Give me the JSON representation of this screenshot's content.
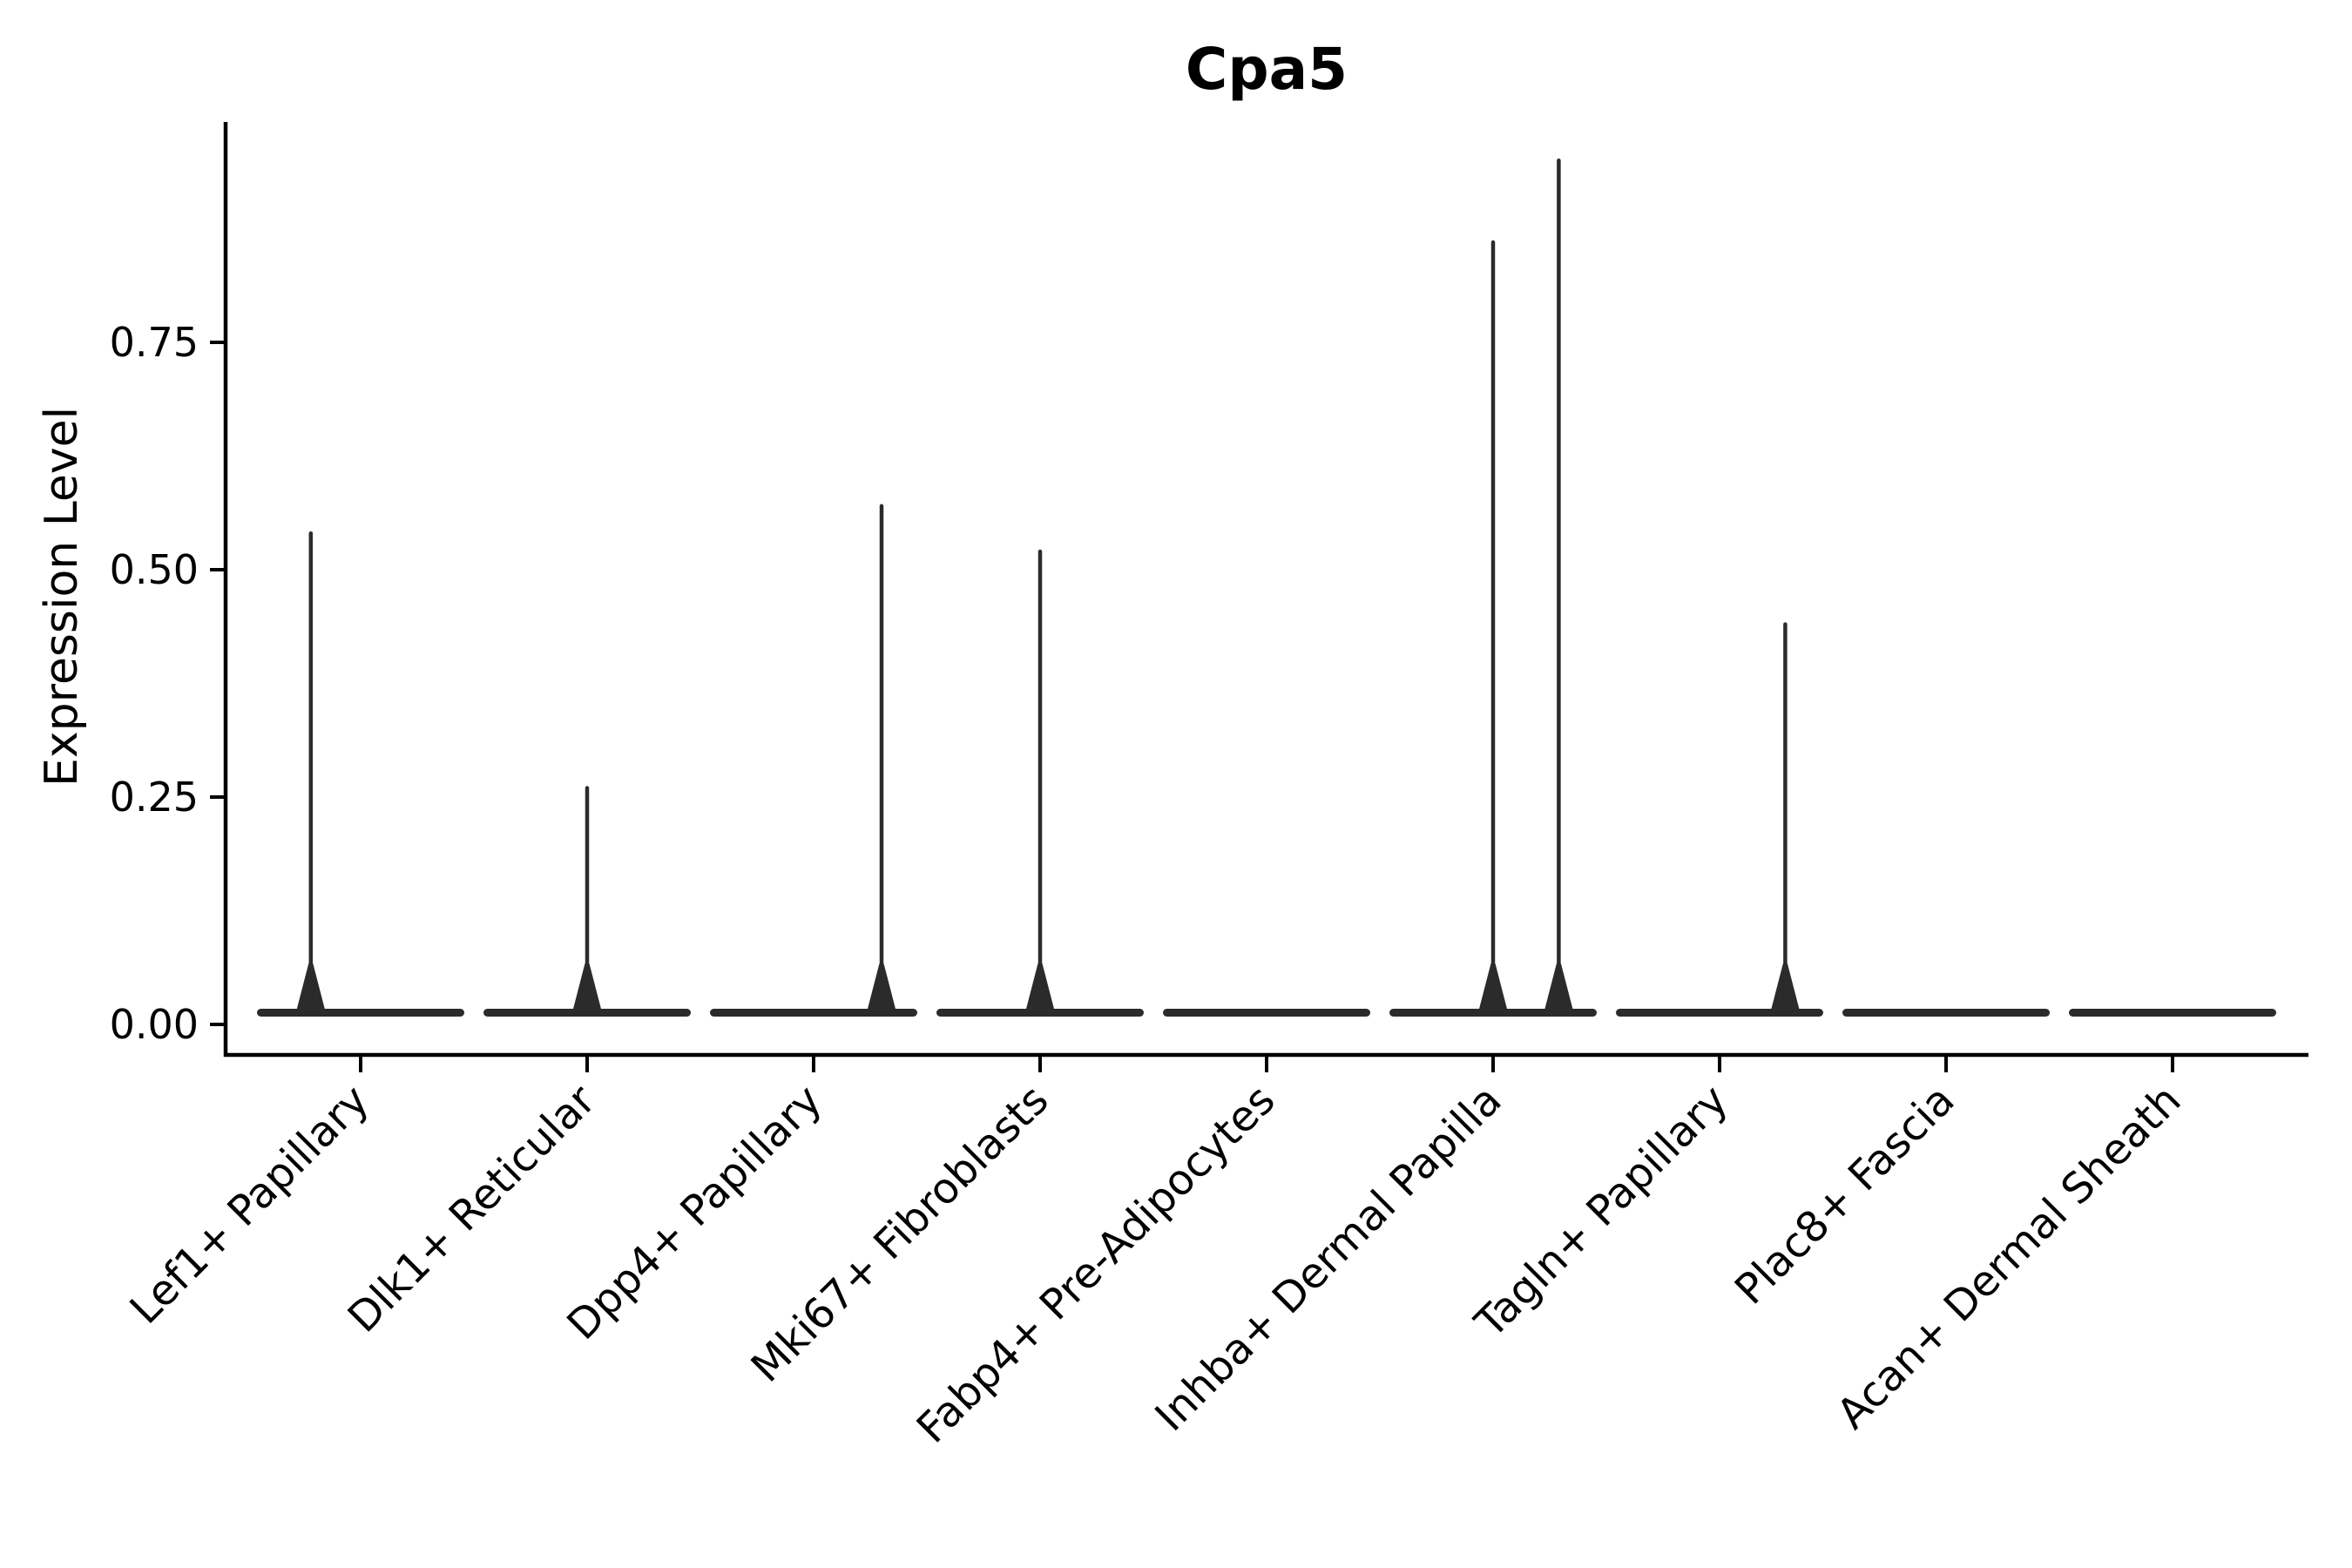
{
  "figure": {
    "background_color": "#ffffff",
    "axis_color": "#000000",
    "violin_color": "#2b2b2b"
  },
  "chart_data": {
    "type": "violin",
    "title": "Cpa5",
    "xlabel": "",
    "ylabel": "Expression Level",
    "grid": false,
    "legend": "none",
    "ylim": [
      -0.03,
      0.99
    ],
    "ytick_labels": [
      "0.00",
      "0.25",
      "0.50",
      "0.75"
    ],
    "ytick_values": [
      0.0,
      0.25,
      0.5,
      0.75
    ],
    "categories": [
      "Lef1+ Papillary",
      "Dlk1+ Reticular",
      "Dpp4+ Papillary",
      "Mki67+ Fibroblasts",
      "Fabp4+ Pre-Adipocytes",
      "Inhba+ Dermal Papilla",
      "Tagln+ Papillary",
      "Plac8+ Fascia",
      "Acan+ Dermal Sheath"
    ],
    "xtick_label_rotation_deg": 45,
    "violins": [
      {
        "category": "Lef1+ Papillary",
        "baseline_value": 0.0,
        "spikes": [
          {
            "value": 0.54,
            "offset_frac": -0.22
          }
        ]
      },
      {
        "category": "Dlk1+ Reticular",
        "baseline_value": 0.0,
        "spikes": [
          {
            "value": 0.26,
            "offset_frac": 0.0
          }
        ]
      },
      {
        "category": "Dpp4+ Papillary",
        "baseline_value": 0.0,
        "spikes": [
          {
            "value": 0.57,
            "offset_frac": 0.3
          }
        ]
      },
      {
        "category": "Mki67+ Fibroblasts",
        "baseline_value": 0.0,
        "spikes": [
          {
            "value": 0.52,
            "offset_frac": 0.0
          }
        ]
      },
      {
        "category": "Fabp4+ Pre-Adipocytes",
        "baseline_value": 0.0,
        "spikes": []
      },
      {
        "category": "Inhba+ Dermal Papilla",
        "baseline_value": 0.0,
        "spikes": [
          {
            "value": 0.86,
            "offset_frac": 0.0
          },
          {
            "value": 0.95,
            "offset_frac": 0.29
          }
        ]
      },
      {
        "category": "Tagln+ Papillary",
        "baseline_value": 0.0,
        "spikes": [
          {
            "value": 0.44,
            "offset_frac": 0.29
          }
        ]
      },
      {
        "category": "Plac8+ Fascia",
        "baseline_value": 0.0,
        "spikes": []
      },
      {
        "category": "Acan+ Dermal Sheath",
        "baseline_value": 0.0,
        "spikes": []
      }
    ]
  }
}
